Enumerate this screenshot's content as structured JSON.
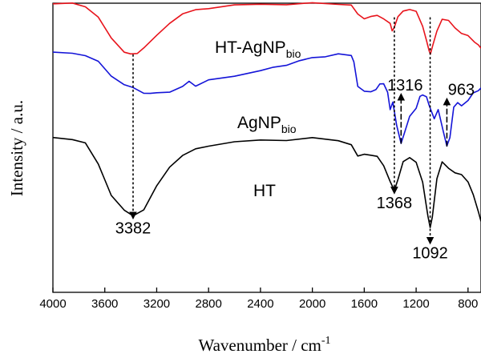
{
  "chart_data": {
    "type": "line",
    "xlabel": "Wavenumber / cm",
    "xlabel_sup": "-1",
    "ylabel": "Intensity / a.u.",
    "xlim": [
      4000,
      700
    ],
    "x_reversed": true,
    "x_ticks": [
      4000,
      3600,
      3200,
      2800,
      2400,
      2000,
      1600,
      1200,
      800
    ],
    "y_ticks_shown": false,
    "grid": false,
    "series": [
      {
        "name": "HT-AgNP",
        "name_sub": "bio",
        "color": "#e8141c",
        "points": [
          [
            4000,
            0.95
          ],
          [
            3850,
            0.95
          ],
          [
            3750,
            0.93
          ],
          [
            3650,
            0.8
          ],
          [
            3550,
            0.58
          ],
          [
            3450,
            0.44
          ],
          [
            3400,
            0.4
          ],
          [
            3350,
            0.42
          ],
          [
            3300,
            0.48
          ],
          [
            3200,
            0.6
          ],
          [
            3100,
            0.75
          ],
          [
            3000,
            0.84
          ],
          [
            2900,
            0.88
          ],
          [
            2800,
            0.91
          ],
          [
            2600,
            0.93
          ],
          [
            2400,
            0.945
          ],
          [
            2200,
            0.95
          ],
          [
            2000,
            0.95
          ],
          [
            1800,
            0.95
          ],
          [
            1700,
            0.94
          ],
          [
            1650,
            0.83
          ],
          [
            1600,
            0.8
          ],
          [
            1550,
            0.81
          ],
          [
            1500,
            0.82
          ],
          [
            1450,
            0.8
          ],
          [
            1400,
            0.73
          ],
          [
            1385,
            0.66
          ],
          [
            1370,
            0.7
          ],
          [
            1340,
            0.8
          ],
          [
            1300,
            0.88
          ],
          [
            1250,
            0.89
          ],
          [
            1200,
            0.86
          ],
          [
            1150,
            0.72
          ],
          [
            1120,
            0.55
          ],
          [
            1100,
            0.44
          ],
          [
            1090,
            0.42
          ],
          [
            1070,
            0.5
          ],
          [
            1040,
            0.66
          ],
          [
            1000,
            0.79
          ],
          [
            950,
            0.76
          ],
          [
            900,
            0.7
          ],
          [
            850,
            0.63
          ],
          [
            800,
            0.6
          ],
          [
            750,
            0.55
          ],
          [
            720,
            0.5
          ],
          [
            700,
            0.47
          ]
        ]
      },
      {
        "name": "AgNP",
        "name_sub": "bio",
        "color": "#1414d8",
        "points": [
          [
            4000,
            0.42
          ],
          [
            3850,
            0.42
          ],
          [
            3750,
            0.4
          ],
          [
            3650,
            0.32
          ],
          [
            3550,
            0.18
          ],
          [
            3450,
            0.08
          ],
          [
            3382,
            0.04
          ],
          [
            3300,
            0.0
          ],
          [
            3250,
            -0.02
          ],
          [
            3200,
            -0.01
          ],
          [
            3100,
            0.01
          ],
          [
            3000,
            0.05
          ],
          [
            2950,
            0.12
          ],
          [
            2900,
            0.07
          ],
          [
            2800,
            0.12
          ],
          [
            2600,
            0.18
          ],
          [
            2400,
            0.23
          ],
          [
            2300,
            0.26
          ],
          [
            2200,
            0.3
          ],
          [
            2100,
            0.33
          ],
          [
            2000,
            0.37
          ],
          [
            1900,
            0.39
          ],
          [
            1800,
            0.4
          ],
          [
            1700,
            0.4
          ],
          [
            1680,
            0.33
          ],
          [
            1650,
            0.05
          ],
          [
            1600,
            0.02
          ],
          [
            1550,
            0.0
          ],
          [
            1510,
            0.02
          ],
          [
            1480,
            0.1
          ],
          [
            1450,
            0.08
          ],
          [
            1420,
            0.0
          ],
          [
            1400,
            -0.18
          ],
          [
            1380,
            -0.12
          ],
          [
            1350,
            -0.35
          ],
          [
            1316,
            -0.55
          ],
          [
            1290,
            -0.45
          ],
          [
            1250,
            -0.25
          ],
          [
            1200,
            -0.18
          ],
          [
            1170,
            -0.05
          ],
          [
            1150,
            -0.02
          ],
          [
            1120,
            -0.06
          ],
          [
            1100,
            -0.14
          ],
          [
            1060,
            -0.28
          ],
          [
            1030,
            -0.2
          ],
          [
            990,
            -0.42
          ],
          [
            963,
            -0.58
          ],
          [
            940,
            -0.5
          ],
          [
            910,
            -0.15
          ],
          [
            880,
            -0.12
          ],
          [
            850,
            -0.15
          ],
          [
            800,
            -0.08
          ],
          [
            760,
            -0.02
          ],
          [
            720,
            0.02
          ],
          [
            700,
            0.05
          ]
        ]
      },
      {
        "name": "HT",
        "name_sub": "",
        "color": "#000000",
        "points": [
          [
            4000,
            -0.5
          ],
          [
            3850,
            -0.5
          ],
          [
            3750,
            -0.55
          ],
          [
            3650,
            -0.78
          ],
          [
            3550,
            -1.1
          ],
          [
            3450,
            -1.28
          ],
          [
            3382,
            -1.33
          ],
          [
            3300,
            -1.26
          ],
          [
            3200,
            -1.02
          ],
          [
            3100,
            -0.8
          ],
          [
            3000,
            -0.68
          ],
          [
            2900,
            -0.62
          ],
          [
            2800,
            -0.57
          ],
          [
            2600,
            -0.54
          ],
          [
            2400,
            -0.52
          ],
          [
            2200,
            -0.51
          ],
          [
            2000,
            -0.5
          ],
          [
            1800,
            -0.52
          ],
          [
            1700,
            -0.56
          ],
          [
            1650,
            -0.7
          ],
          [
            1600,
            -0.66
          ],
          [
            1550,
            -0.68
          ],
          [
            1500,
            -0.7
          ],
          [
            1450,
            -0.78
          ],
          [
            1400,
            -0.97
          ],
          [
            1368,
            -1.06
          ],
          [
            1340,
            -0.93
          ],
          [
            1300,
            -0.76
          ],
          [
            1250,
            -0.7
          ],
          [
            1200,
            -0.75
          ],
          [
            1150,
            -0.98
          ],
          [
            1110,
            -1.32
          ],
          [
            1092,
            -1.46
          ],
          [
            1075,
            -1.35
          ],
          [
            1040,
            -0.92
          ],
          [
            1000,
            -0.76
          ],
          [
            950,
            -0.82
          ],
          [
            900,
            -0.86
          ],
          [
            850,
            -0.9
          ],
          [
            800,
            -0.96
          ],
          [
            760,
            -1.1
          ],
          [
            720,
            -1.3
          ],
          [
            700,
            -1.38
          ]
        ]
      }
    ],
    "annotations": [
      {
        "label": "3382",
        "x": 3382,
        "style": "dotted",
        "from": 0.4,
        "to": -1.33,
        "arrow": "down",
        "label_at": "below"
      },
      {
        "label": "1368",
        "x": 1368,
        "style": "dotted",
        "from": 0.8,
        "to": -1.06,
        "arrow": "down",
        "label_at": "below"
      },
      {
        "label": "1092",
        "x": 1092,
        "style": "dotted",
        "from": 0.8,
        "to": -1.6,
        "arrow": "down",
        "label_at": "below"
      },
      {
        "label": "1316",
        "x": 1316,
        "style": "dashed",
        "from": -0.55,
        "to": -0.05,
        "arrow": "up",
        "label_at": "above"
      },
      {
        "label": "963",
        "x": 963,
        "style": "dashed",
        "from": -0.58,
        "to": -0.1,
        "arrow": "up",
        "label_at": "above"
      }
    ]
  }
}
